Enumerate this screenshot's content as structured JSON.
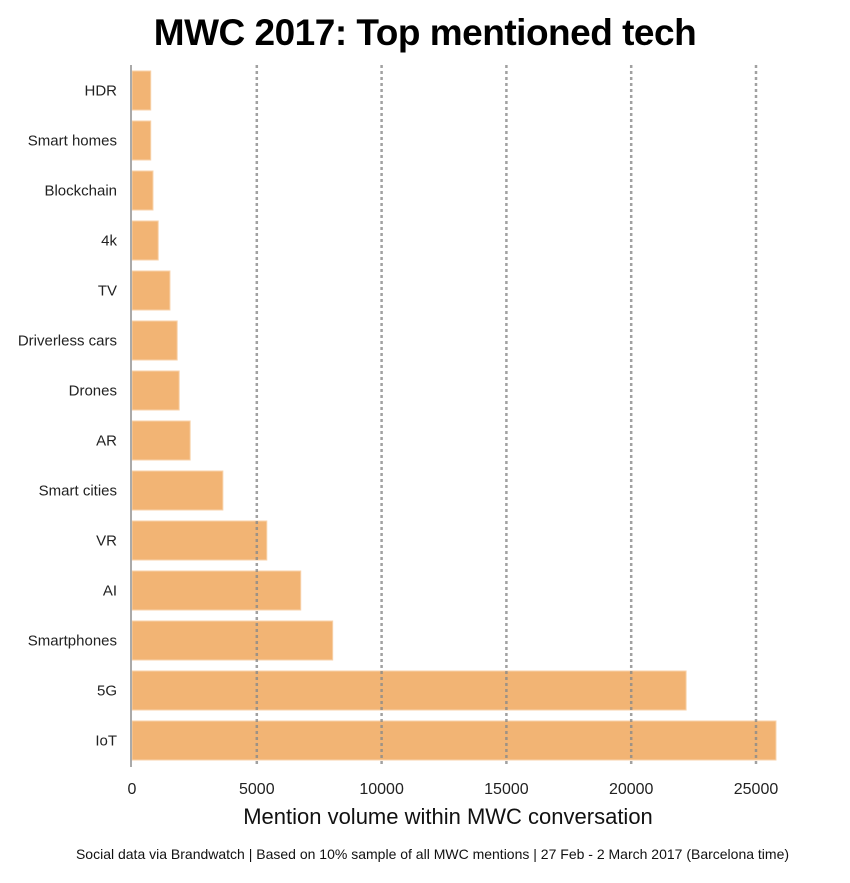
{
  "chart_data": {
    "type": "bar",
    "orientation": "horizontal",
    "title": "MWC 2017: Top mentioned tech",
    "xlabel": "Mention volume within MWC conversation",
    "ylabel": "",
    "footer": "Social data via Brandwatch | Based on 10% sample of all MWC mentions | 27 Feb - 2 March 2017 (Barcelona time)",
    "categories": [
      "HDR",
      "Smart homes",
      "Blockchain",
      "4k",
      "TV",
      "Driverless cars",
      "Drones",
      "AR",
      "Smart cities",
      "VR",
      "AI",
      "Smartphones",
      "5G",
      "IoT"
    ],
    "values": [
      750,
      750,
      840,
      1050,
      1520,
      1810,
      1890,
      2330,
      3640,
      5400,
      6760,
      8040,
      22200,
      25800
    ],
    "xlim": [
      0,
      26500
    ],
    "xticks": [
      0,
      5000,
      10000,
      15000,
      20000,
      25000
    ],
    "xtick_labels": [
      "0",
      "5000",
      "10000",
      "15000",
      "20000",
      "25000"
    ],
    "grid": "vertical dotted",
    "bar_color": "#f2b474"
  }
}
